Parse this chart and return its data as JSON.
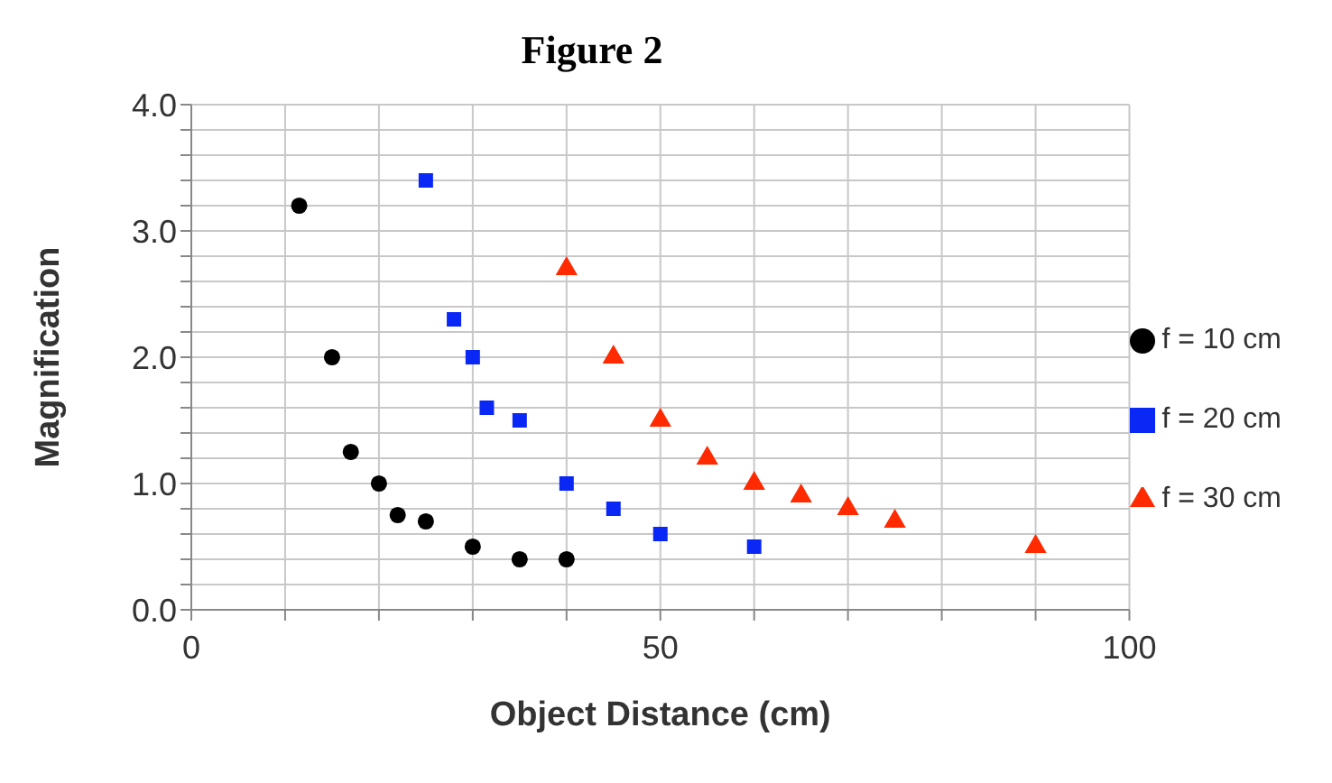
{
  "chart_data": {
    "type": "scatter",
    "title": "Figure 2",
    "xlabel": "Object Distance (cm)",
    "ylabel": "Magnification",
    "xlim": [
      0,
      100
    ],
    "xticks": [
      0,
      {
        "value": 10,
        "label": null
      },
      {
        "value": 20,
        "label": null
      },
      {
        "value": 30,
        "label": null
      },
      {
        "value": 40,
        "label": null
      },
      50,
      {
        "value": 60,
        "label": null
      },
      {
        "value": 70,
        "label": null
      },
      {
        "value": 80,
        "label": null
      },
      {
        "value": 90,
        "label": null
      },
      100
    ],
    "ylim": [
      0,
      4
    ],
    "yticks": [
      {
        "value": 0,
        "label": "0.0"
      },
      {
        "value": 0.2,
        "label": null
      },
      {
        "value": 0.4,
        "label": null
      },
      {
        "value": 0.6,
        "label": null
      },
      {
        "value": 0.8,
        "label": null
      },
      {
        "value": 1,
        "label": "1.0"
      },
      {
        "value": 1.2,
        "label": null
      },
      {
        "value": 1.4,
        "label": null
      },
      {
        "value": 1.6,
        "label": null
      },
      {
        "value": 1.8,
        "label": null
      },
      {
        "value": 2,
        "label": "2.0"
      },
      {
        "value": 2.2,
        "label": null
      },
      {
        "value": 2.4,
        "label": null
      },
      {
        "value": 2.6,
        "label": null
      },
      {
        "value": 2.8,
        "label": null
      },
      {
        "value": 3,
        "label": "3.0"
      },
      {
        "value": 3.2,
        "label": null
      },
      {
        "value": 3.4,
        "label": null
      },
      {
        "value": 3.6,
        "label": null
      },
      {
        "value": 3.8,
        "label": null
      },
      {
        "value": 4,
        "label": "4.0"
      }
    ],
    "grid": true,
    "legend": "right",
    "series": [
      {
        "name": "f = 10 cm",
        "color": "#000000",
        "marker": "circle",
        "x": [
          11.5,
          15,
          17,
          20,
          22,
          25,
          30,
          35,
          40
        ],
        "values": [
          3.2,
          2.0,
          1.25,
          1.0,
          0.75,
          0.7,
          0.5,
          0.4,
          0.4
        ]
      },
      {
        "name": "f = 20 cm",
        "color": "#0a28f5",
        "marker": "square",
        "x": [
          25,
          28,
          30,
          31.5,
          35,
          40,
          45,
          50,
          60
        ],
        "values": [
          3.4,
          2.3,
          2.0,
          1.6,
          1.5,
          1.0,
          0.8,
          0.6,
          0.5
        ]
      },
      {
        "name": "f = 30 cm",
        "color": "#ff2a00",
        "marker": "triangle",
        "x": [
          40,
          45,
          50,
          55,
          60,
          65,
          70,
          75,
          90
        ],
        "values": [
          2.7,
          2.0,
          1.5,
          1.2,
          1.0,
          0.9,
          0.8,
          0.7,
          0.5
        ]
      }
    ]
  }
}
